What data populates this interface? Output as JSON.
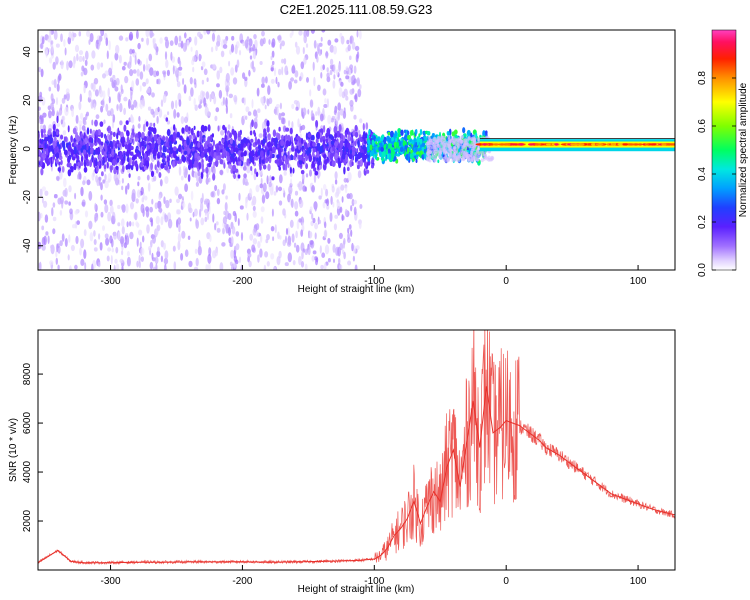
{
  "figure_title": "C2E1.2025.111.08.59.G23",
  "colors": {
    "snr_line": "#e8302a",
    "axis": "#000000",
    "colormap": [
      "#ffffff",
      "#e6d8ff",
      "#b48cff",
      "#7a3cff",
      "#3a10ff",
      "#1a40ff",
      "#00c8ff",
      "#00ff90",
      "#7aff00",
      "#ffff00",
      "#ff8a00",
      "#ff2000",
      "#ff1060",
      "#ff40c0"
    ]
  },
  "chart_data": [
    {
      "type": "heatmap",
      "title": "",
      "xlabel": "Height of straight line (km)",
      "ylabel": "Frequency (Hz)",
      "xlim": [
        -355,
        128
      ],
      "ylim": [
        -50,
        49
      ],
      "xticks": [
        -300,
        -200,
        -100,
        0,
        100
      ],
      "yticks": [
        -40,
        -20,
        0,
        20,
        40
      ],
      "colorbar": {
        "label": "Normalized spectral amplitude",
        "range": [
          0,
          1
        ],
        "ticks": [
          0.0,
          0.2,
          0.4,
          0.6,
          0.8
        ]
      },
      "features": [
        {
          "x_range": [
            -355,
            -110
          ],
          "freq_range": [
            -50,
            49
          ],
          "amplitude": 0.05,
          "description_type": "diffuse noise"
        },
        {
          "x_range": [
            -355,
            -100
          ],
          "freq_range": [
            -10,
            10
          ],
          "amplitude": 0.2
        },
        {
          "x_range": [
            -100,
            -20
          ],
          "freq_range": [
            -5,
            8
          ],
          "amplitude": 0.45
        },
        {
          "x_range": [
            -20,
            128
          ],
          "freq_range": [
            0,
            3
          ],
          "amplitude": 0.9
        }
      ]
    },
    {
      "type": "line",
      "title": "",
      "xlabel": "Height of straight line (km)",
      "ylabel": "SNR (10 * v/v)",
      "xlim": [
        -355,
        128
      ],
      "ylim": [
        0,
        9800
      ],
      "xticks": [
        -300,
        -200,
        -100,
        0,
        100
      ],
      "yticks": [
        2000,
        4000,
        6000,
        8000
      ],
      "series": [
        {
          "x": [
            -355,
            -340,
            -330,
            -320,
            -300,
            -280,
            -260,
            -240,
            -220,
            -200,
            -180,
            -160,
            -140,
            -120,
            -110,
            -100,
            -95,
            -90,
            -85,
            -80,
            -75,
            -70,
            -65,
            -60,
            -55,
            -50,
            -45,
            -40,
            -35,
            -30,
            -25,
            -20,
            -15,
            -10,
            -5,
            0,
            5,
            10,
            15,
            20,
            25,
            30,
            40,
            50,
            60,
            70,
            80,
            90,
            100,
            110,
            120,
            128
          ],
          "y": [
            300,
            800,
            350,
            300,
            300,
            320,
            320,
            330,
            330,
            340,
            320,
            330,
            350,
            380,
            400,
            450,
            600,
            900,
            1400,
            1700,
            2100,
            2800,
            1900,
            2600,
            3200,
            2800,
            4200,
            4900,
            3400,
            5200,
            6900,
            5000,
            7500,
            5600,
            5800,
            6100,
            6000,
            5900,
            5700,
            5500,
            5300,
            5000,
            4700,
            4300,
            3900,
            3500,
            3100,
            2900,
            2700,
            2500,
            2350,
            2250
          ]
        }
      ]
    }
  ]
}
